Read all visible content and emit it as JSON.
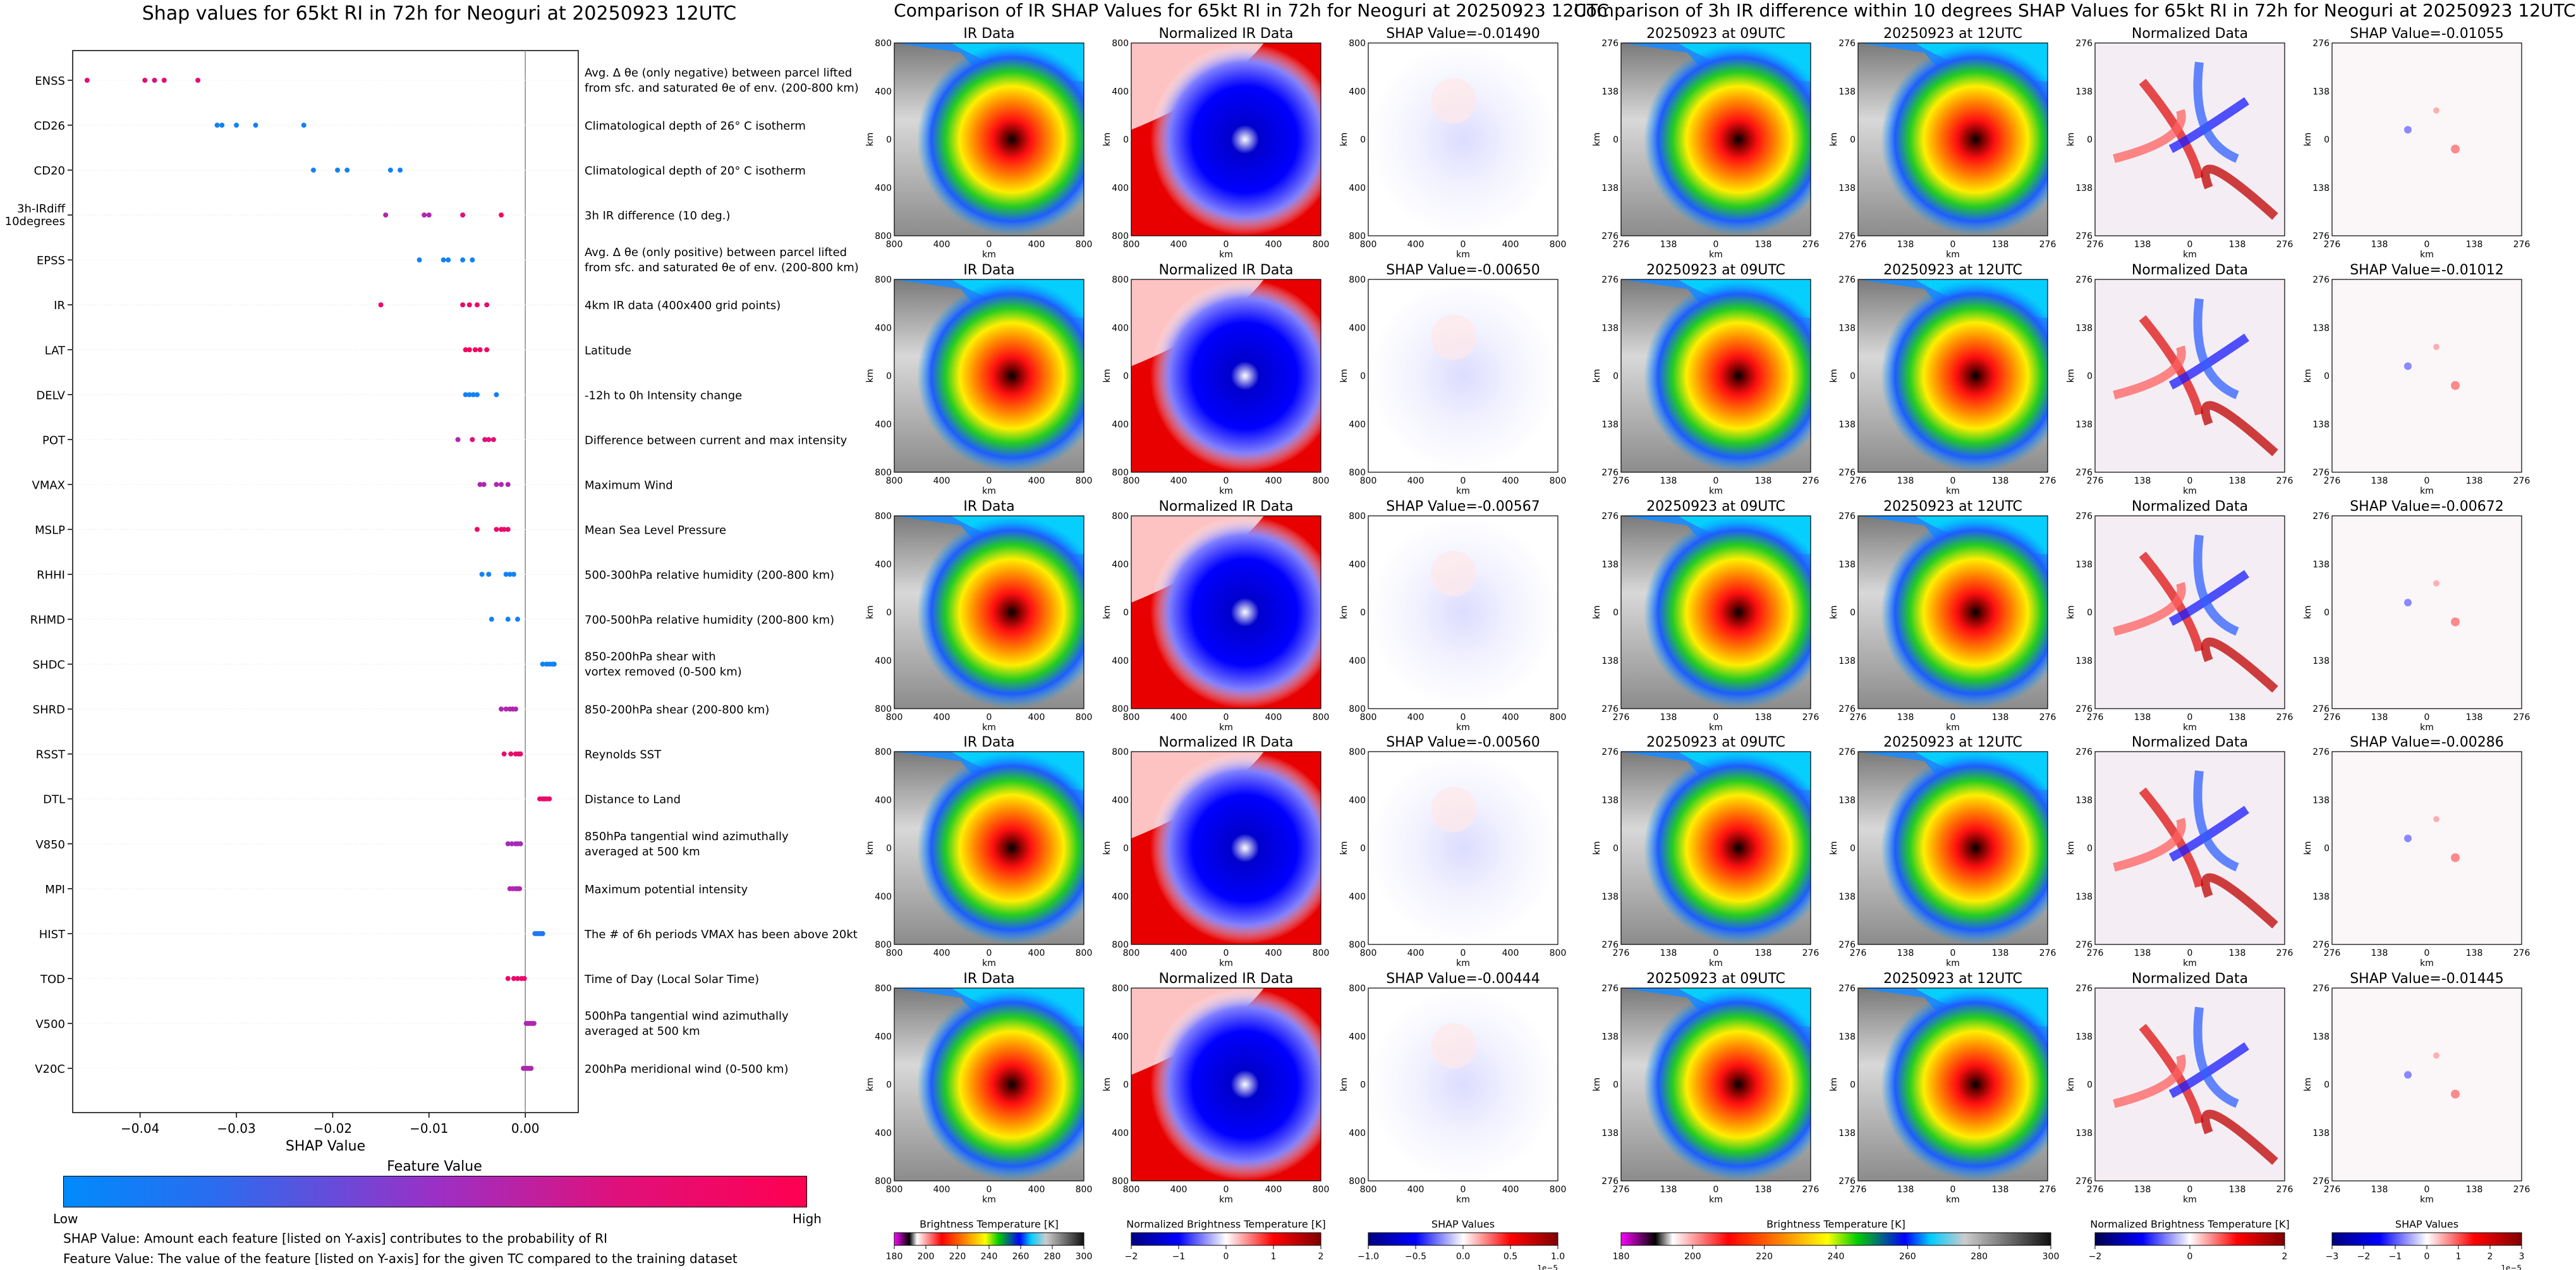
{
  "left_panel": {
    "title": "Shap values for 65kt RI in 72h for Neoguri at 20250923 12UTC",
    "colorbar_title": "Feature Value",
    "colorbar_low": "Low",
    "colorbar_high": "High",
    "note1": "SHAP Value: Amount each feature [listed on Y-axis] contributes to the probability of RI",
    "note2": "Feature Value: The value of the feature [listed on Y-axis] for the given TC compared to the training dataset",
    "colors": {
      "low": "#008bfb",
      "mid": "#9b30c6",
      "high": "#ff0052"
    }
  },
  "middle_panel": {
    "title": "Comparison of IR SHAP Values for 65kt RI in 72h for Neoguri at 20250923 12UTC",
    "col_titles": [
      "IR Data",
      "Normalized IR Data"
    ],
    "shap_titles": [
      "SHAP Value=-0.01490",
      "SHAP Value=-0.00650",
      "SHAP Value=-0.00567",
      "SHAP Value=-0.00560",
      "SHAP Value=-0.00444"
    ],
    "y_ticks": [
      "800",
      "400",
      "0",
      "400",
      "800"
    ],
    "x_ticks": [
      "800",
      "400",
      "0",
      "400",
      "800"
    ],
    "axis_unit": "km",
    "cb1_label": "Brightness Temperature [K]",
    "cb1_ticks": [
      "180",
      "200",
      "220",
      "240",
      "260",
      "280",
      "300"
    ],
    "cb2_label": "Normalized Brightness Temperature [K]",
    "cb2_ticks": [
      "−2",
      "−1",
      "0",
      "1",
      "2"
    ],
    "cb3_label": "SHAP Values",
    "cb3_ticks": [
      "−1.0",
      "−0.5",
      "0.0",
      "0.5",
      "1.0"
    ],
    "cb3_exp": "1e−5"
  },
  "right_panel": {
    "title": "Comparison of 3h IR difference within 10 degrees SHAP Values for 65kt RI in 72h for Neoguri at 20250923 12UTC",
    "col_titles": [
      "20250923 at 09UTC",
      "20250923 at 12UTC",
      "Normalized Data"
    ],
    "shap_titles": [
      "SHAP Value=-0.01055",
      "SHAP Value=-0.01012",
      "SHAP Value=-0.00672",
      "SHAP Value=-0.00286",
      "SHAP Value=-0.01445"
    ],
    "y_ticks": [
      "276",
      "138",
      "0",
      "138",
      "276"
    ],
    "x_ticks": [
      "276",
      "138",
      "0",
      "138",
      "276"
    ],
    "axis_unit": "km",
    "cb1_label": "Brightness Temperature [K]",
    "cb1_ticks": [
      "180",
      "200",
      "220",
      "240",
      "260",
      "280",
      "300"
    ],
    "cb2_label": "Normalized Brightness Temperature [K]",
    "cb2_ticks": [
      "−2",
      "0",
      "2"
    ],
    "cb3_label": "SHAP Values",
    "cb3_ticks": [
      "−3",
      "−2",
      "−1",
      "0",
      "1",
      "2",
      "3"
    ],
    "cb3_exp": "1e−5"
  },
  "chart_data": {
    "type": "scatter",
    "title": "Shap values for 65kt RI in 72h for Neoguri at 20250923 12UTC",
    "xlabel": "SHAP Value",
    "ylabel": "",
    "xlim": [
      -0.047,
      0.0055
    ],
    "x_ticks": [
      -0.04,
      -0.03,
      -0.02,
      -0.01,
      0.0
    ],
    "x_tick_labels": [
      "−0.04",
      "−0.03",
      "−0.02",
      "−0.01",
      "0.00"
    ],
    "features": [
      {
        "name": "ENSS",
        "desc": [
          "Avg. Δ θe (only negative) between parcel lifted",
          "from sfc. and saturated θe of env. (200-800 km)"
        ],
        "points": [
          [
            -0.0455,
            0.85
          ],
          [
            -0.0395,
            0.85
          ],
          [
            -0.0385,
            0.8
          ],
          [
            -0.0375,
            0.85
          ],
          [
            -0.034,
            0.85
          ]
        ]
      },
      {
        "name": "CD26",
        "desc": [
          "Climatological depth of 26° C isotherm"
        ],
        "points": [
          [
            -0.032,
            0.05
          ],
          [
            -0.0315,
            0.05
          ],
          [
            -0.03,
            0.05
          ],
          [
            -0.028,
            0.05
          ],
          [
            -0.023,
            0.05
          ]
        ]
      },
      {
        "name": "CD20",
        "desc": [
          "Climatological depth of 20° C isotherm"
        ],
        "points": [
          [
            -0.022,
            0.05
          ],
          [
            -0.0195,
            0.05
          ],
          [
            -0.0185,
            0.05
          ],
          [
            -0.014,
            0.05
          ],
          [
            -0.013,
            0.05
          ]
        ]
      },
      {
        "name": "3h-IRdiff 10degrees",
        "desc": [
          "3h IR difference (10 deg.)"
        ],
        "points": [
          [
            -0.0145,
            0.6
          ],
          [
            -0.0105,
            0.6
          ],
          [
            -0.01,
            0.6
          ],
          [
            -0.0065,
            0.85
          ],
          [
            -0.0025,
            0.95
          ]
        ]
      },
      {
        "name": "EPSS",
        "desc": [
          "Avg. Δ θe (only positive) between parcel lifted",
          "from sfc. and saturated θe of env. (200-800 km)"
        ],
        "points": [
          [
            -0.011,
            0.05
          ],
          [
            -0.0085,
            0.05
          ],
          [
            -0.008,
            0.05
          ],
          [
            -0.0065,
            0.05
          ],
          [
            -0.0055,
            0.05
          ]
        ]
      },
      {
        "name": "IR",
        "desc": [
          "4km IR data (400x400 grid points)"
        ],
        "points": [
          [
            -0.015,
            0.9
          ],
          [
            -0.0065,
            0.9
          ],
          [
            -0.0058,
            0.9
          ],
          [
            -0.005,
            0.9
          ],
          [
            -0.004,
            0.9
          ]
        ]
      },
      {
        "name": "LAT",
        "desc": [
          "Latitude"
        ],
        "points": [
          [
            -0.0062,
            0.95
          ],
          [
            -0.0058,
            0.95
          ],
          [
            -0.0052,
            0.95
          ],
          [
            -0.0047,
            0.95
          ],
          [
            -0.004,
            0.95
          ]
        ]
      },
      {
        "name": "DELV",
        "desc": [
          "-12h to 0h Intensity change"
        ],
        "points": [
          [
            -0.0062,
            0.05
          ],
          [
            -0.0058,
            0.05
          ],
          [
            -0.0054,
            0.05
          ],
          [
            -0.005,
            0.05
          ],
          [
            -0.003,
            0.05
          ]
        ]
      },
      {
        "name": "POT",
        "desc": [
          "Difference between current and max intensity"
        ],
        "points": [
          [
            -0.007,
            0.6
          ],
          [
            -0.0055,
            0.85
          ],
          [
            -0.0042,
            0.85
          ],
          [
            -0.0038,
            0.85
          ],
          [
            -0.0033,
            0.85
          ]
        ]
      },
      {
        "name": "VMAX",
        "desc": [
          "Maximum Wind"
        ],
        "points": [
          [
            -0.0047,
            0.6
          ],
          [
            -0.0043,
            0.6
          ],
          [
            -0.003,
            0.6
          ],
          [
            -0.0025,
            0.6
          ],
          [
            -0.0018,
            0.6
          ]
        ]
      },
      {
        "name": "MSLP",
        "desc": [
          "Mean Sea Level Pressure"
        ],
        "points": [
          [
            -0.005,
            0.9
          ],
          [
            -0.003,
            0.9
          ],
          [
            -0.0025,
            0.9
          ],
          [
            -0.0022,
            0.9
          ],
          [
            -0.0018,
            0.9
          ]
        ]
      },
      {
        "name": "RHHI",
        "desc": [
          "500-300hPa relative humidity (200-800 km)"
        ],
        "points": [
          [
            -0.0045,
            0.05
          ],
          [
            -0.0038,
            0.05
          ],
          [
            -0.002,
            0.05
          ],
          [
            -0.0016,
            0.05
          ],
          [
            -0.0012,
            0.05
          ]
        ]
      },
      {
        "name": "RHMD",
        "desc": [
          "700-500hPa relative humidity (200-800 km)"
        ],
        "points": [
          [
            -0.0035,
            0.05
          ],
          [
            -0.0018,
            0.05
          ],
          [
            -0.0008,
            0.05
          ]
        ]
      },
      {
        "name": "SHDC",
        "desc": [
          "850-200hPa shear with",
          "vortex removed (0-500 km)"
        ],
        "points": [
          [
            0.0018,
            0.05
          ],
          [
            0.0022,
            0.05
          ],
          [
            0.0025,
            0.05
          ],
          [
            0.0028,
            0.05
          ],
          [
            0.003,
            0.05
          ]
        ]
      },
      {
        "name": "SHRD",
        "desc": [
          "850-200hPa shear (200-800 km)"
        ],
        "points": [
          [
            -0.0025,
            0.6
          ],
          [
            -0.002,
            0.6
          ],
          [
            -0.0016,
            0.6
          ],
          [
            -0.0013,
            0.6
          ],
          [
            -0.001,
            0.6
          ]
        ]
      },
      {
        "name": "RSST",
        "desc": [
          "Reynolds SST"
        ],
        "points": [
          [
            -0.0022,
            0.9
          ],
          [
            -0.0015,
            0.9
          ],
          [
            -0.001,
            0.9
          ],
          [
            -0.0007,
            0.9
          ],
          [
            -0.0005,
            0.9
          ]
        ]
      },
      {
        "name": "DTL",
        "desc": [
          "Distance to Land"
        ],
        "points": [
          [
            0.0015,
            0.9
          ],
          [
            0.0018,
            0.9
          ],
          [
            0.002,
            0.9
          ],
          [
            0.0022,
            0.9
          ],
          [
            0.0025,
            0.9
          ]
        ]
      },
      {
        "name": "V850",
        "desc": [
          "850hPa tangential wind azimuthally",
          "averaged at 500 km"
        ],
        "points": [
          [
            -0.0018,
            0.55
          ],
          [
            -0.0014,
            0.55
          ],
          [
            -0.001,
            0.55
          ],
          [
            -0.0008,
            0.55
          ],
          [
            -0.0005,
            0.55
          ]
        ]
      },
      {
        "name": "MPI",
        "desc": [
          "Maximum potential intensity"
        ],
        "points": [
          [
            -0.0016,
            0.6
          ],
          [
            -0.0013,
            0.6
          ],
          [
            -0.001,
            0.6
          ],
          [
            -0.0008,
            0.6
          ],
          [
            -0.0006,
            0.6
          ]
        ]
      },
      {
        "name": "HIST",
        "desc": [
          "The # of 6h periods VMAX has been above 20kt"
        ],
        "points": [
          [
            0.001,
            0.1
          ],
          [
            0.0012,
            0.1
          ],
          [
            0.0014,
            0.1
          ],
          [
            0.0016,
            0.1
          ],
          [
            0.0018,
            0.1
          ]
        ]
      },
      {
        "name": "TOD",
        "desc": [
          "Time of Day (Local Solar Time)"
        ],
        "points": [
          [
            -0.0018,
            0.9
          ],
          [
            -0.0012,
            0.9
          ],
          [
            -0.0008,
            0.9
          ],
          [
            -0.0004,
            0.9
          ],
          [
            -0.0001,
            0.9
          ]
        ]
      },
      {
        "name": "V500",
        "desc": [
          "500hPa tangential wind azimuthally",
          "averaged at 500 km"
        ],
        "points": [
          [
            0.0001,
            0.6
          ],
          [
            0.0003,
            0.6
          ],
          [
            0.0005,
            0.6
          ],
          [
            0.0007,
            0.6
          ],
          [
            0.0009,
            0.6
          ]
        ]
      },
      {
        "name": "V20C",
        "desc": [
          "200hPa meridional wind (0-500 km)"
        ],
        "points": [
          [
            -0.0002,
            0.6
          ],
          [
            0.0,
            0.6
          ],
          [
            0.0002,
            0.6
          ],
          [
            0.0004,
            0.6
          ],
          [
            0.0006,
            0.6
          ]
        ]
      }
    ]
  }
}
